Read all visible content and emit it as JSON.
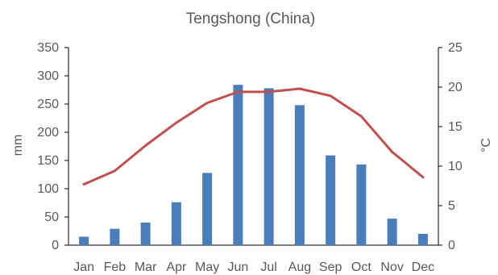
{
  "chart_data": {
    "type": "bar",
    "title": "Tengshong (China)",
    "categories": [
      "Jan",
      "Feb",
      "Mar",
      "Apr",
      "May",
      "Jun",
      "Jul",
      "Aug",
      "Sep",
      "Oct",
      "Nov",
      "Dec"
    ],
    "series": [
      {
        "type": "bar",
        "axis": "left",
        "color": "#4a7ebb",
        "values": [
          15,
          29,
          40,
          76,
          128,
          284,
          278,
          248,
          159,
          143,
          47,
          20
        ]
      },
      {
        "type": "line",
        "axis": "right",
        "color": "#c0504d",
        "values": [
          7.7,
          9.4,
          12.6,
          15.5,
          18.0,
          19.4,
          19.4,
          19.8,
          18.9,
          16.3,
          11.8,
          8.6
        ]
      }
    ],
    "ylabel": "mm",
    "ylabel_right": "°C",
    "ylim": [
      0,
      350
    ],
    "ylim_right": [
      0,
      25
    ],
    "yticks": [
      "0",
      "50",
      "100",
      "150",
      "200",
      "250",
      "300",
      "350"
    ],
    "yticks_right": [
      "0",
      "5",
      "10",
      "15",
      "20",
      "25"
    ],
    "grid": false
  }
}
